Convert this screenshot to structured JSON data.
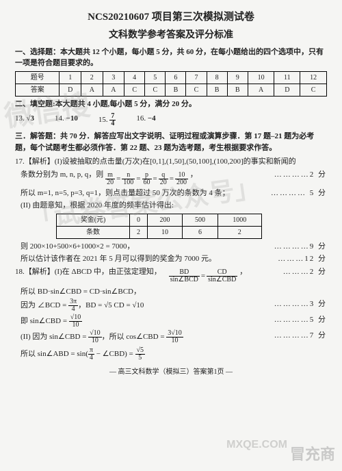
{
  "header": {
    "line1": "NCS20210607 项目第三次模拟测试卷",
    "line2": "文科数学参考答案及评分标准"
  },
  "section1": {
    "title": "一、选择题：本大题共 12 个小题，每小题 5 分，共 60 分，在每小题给出的四个选项中，只有一项是符合题目要求的。",
    "row_h": "题号",
    "row_a": "答案",
    "nums": [
      "1",
      "2",
      "3",
      "4",
      "5",
      "6",
      "7",
      "8",
      "9",
      "10",
      "11",
      "12"
    ],
    "ans": [
      "D",
      "A",
      "A",
      "C",
      "C",
      "B",
      "C",
      "B",
      "B",
      "A",
      "D",
      "C"
    ]
  },
  "section2": {
    "title": "二、填空题:本大题共 4 小题,每小题 5 分，满分 20 分。",
    "items": [
      {
        "n": "13.",
        "v": "√3"
      },
      {
        "n": "14.",
        "v": "−10"
      },
      {
        "n": "15.",
        "v": "7/4"
      },
      {
        "n": "16.",
        "v": "−4"
      }
    ]
  },
  "section3": {
    "title": "三．解答题：共 70 分．解答应写出文字说明、证明过程或演算步骤．第 17 题–21 题为必考题，每个试题考生都必须作答．第 22 题、23 题为选考题，考生根据要求作答。"
  },
  "q17": {
    "head": "17.【解析】(I)设被抽取的点击量(万次)在[0,1],(1,50],(50,100],(100,200]的事实和新闻的",
    "l1a": "条数分别为 m, n, p, q，则 ",
    "l1b": "，",
    "score1": "…………2 分",
    "l2": "所以 m=1, n=5, p=3, q=1，则点击量超过 50 万次的条数为 4 条；",
    "score2": "………… 5 分",
    "l3": "(II) 由题意知，根据 2020 年度的频率估计得出:",
    "row_h1": "奖金(元)",
    "row_h2": "条数",
    "col": [
      "0",
      "200",
      "500",
      "1000"
    ],
    "cnt": [
      "2",
      "10",
      "6",
      "2"
    ],
    "l4": "则 200×10+500×6+1000×2 = 7000，",
    "score4": "…………9 分",
    "l5": "所以估计该作者在 2021 年 5 月可以得到的奖金为 7000 元。",
    "score5": "………12 分"
  },
  "q18": {
    "head": "18.【解析】(I)在 ΔBCD 中，由正弦定理知，",
    "eqr": "，",
    "score0": "………2 分",
    "l1": "所以 BD·sin∠CBD = CD·sin∠BCD，",
    "l2a": "因为 ∠BCD = ",
    "l2b": "，BD = √5 CD = √10",
    "score2": "…………3 分",
    "l3a": "即 sin∠CBD = ",
    "score3": "…………5 分",
    "l4a": "(II) 因为 sin∠CBD = ",
    "l4b": "，所以 cos∠CBD = ",
    "score4": "…………7 分",
    "l5a": "所以 sin∠ABD = sin(",
    "l5b": " − ∠CBD) = "
  },
  "footer": "— 高三文科数学（模拟三）答案第1页 —",
  "wm": {
    "a": "微信搜",
    "b": "「试卷答案公众号」",
    "c": "冒充商",
    "d": "MXQE.COM"
  }
}
